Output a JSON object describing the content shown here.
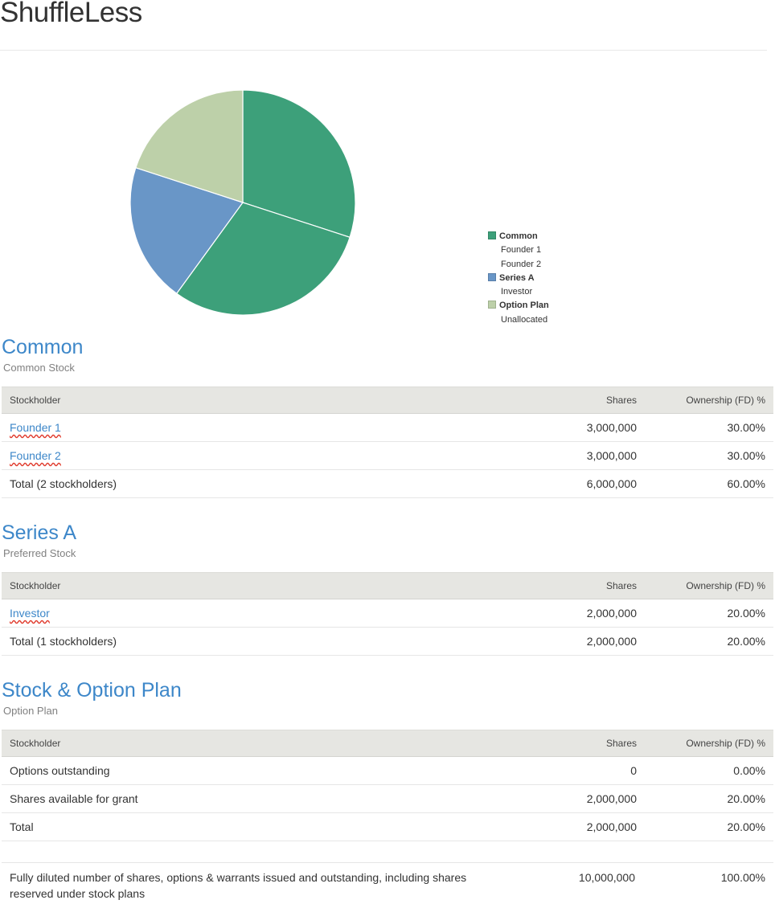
{
  "app": {
    "title": "ShuffleLess"
  },
  "chart_data": {
    "type": "pie",
    "categories": [
      "Founder 1",
      "Founder 2",
      "Investor",
      "Unallocated"
    ],
    "values": [
      3000000,
      3000000,
      2000000,
      2000000
    ],
    "colors": [
      "#3da07a",
      "#3da07a",
      "#6996c7",
      "#bdd0a9"
    ],
    "legend_position": "right",
    "legend": [
      {
        "label": "Common",
        "color": "#3da07a",
        "children": [
          "Founder 1",
          "Founder 2"
        ]
      },
      {
        "label": "Series A",
        "color": "#6996c7",
        "children": [
          "Investor"
        ]
      },
      {
        "label": "Option Plan",
        "color": "#bdd0a9",
        "children": [
          "Unallocated"
        ]
      }
    ]
  },
  "columns": {
    "stockholder": "Stockholder",
    "shares": "Shares",
    "ownership": "Ownership (FD) %"
  },
  "common": {
    "title": "Common",
    "subtitle": "Common Stock",
    "rows": [
      {
        "name": "Founder 1",
        "shares": "3,000,000",
        "pct": "30.00%"
      },
      {
        "name": "Founder 2",
        "shares": "3,000,000",
        "pct": "30.00%"
      }
    ],
    "total": {
      "label": "Total (2 stockholders)",
      "shares": "6,000,000",
      "pct": "60.00%"
    }
  },
  "series_a": {
    "title": "Series A",
    "subtitle": "Preferred Stock",
    "rows": [
      {
        "name": "Investor",
        "shares": "2,000,000",
        "pct": "20.00%"
      }
    ],
    "total": {
      "label": "Total (1 stockholders)",
      "shares": "2,000,000",
      "pct": "20.00%"
    }
  },
  "option_plan": {
    "title": "Stock & Option Plan",
    "subtitle": "Option Plan",
    "rows": [
      {
        "name": "Options outstanding",
        "shares": "0",
        "pct": "0.00%"
      },
      {
        "name": "Shares available for grant",
        "shares": "2,000,000",
        "pct": "20.00%"
      }
    ],
    "total": {
      "label": "Total",
      "shares": "2,000,000",
      "pct": "20.00%"
    }
  },
  "fully_diluted": {
    "label": "Fully diluted number of shares, options & warrants issued and outstanding, including shares reserved under stock plans",
    "shares": "10,000,000",
    "pct": "100.00%"
  }
}
